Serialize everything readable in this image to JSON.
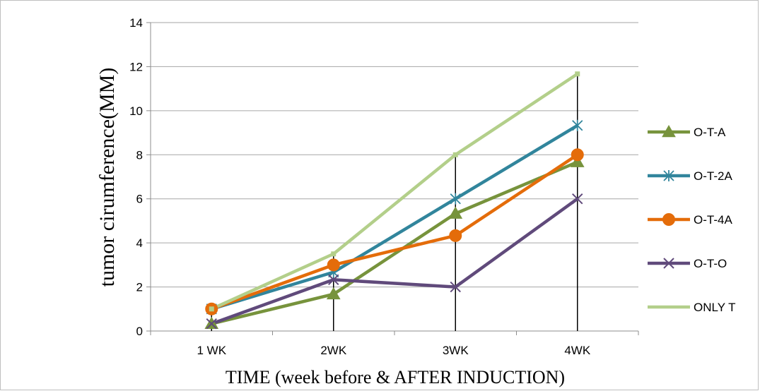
{
  "chart_data": {
    "type": "line",
    "title": "",
    "xlabel": "TIME (week before & AFTER INDUCTION)",
    "ylabel": "tumor cirumference(MM)",
    "categories": [
      "1 WK",
      "2WK",
      "3WK",
      "4WK"
    ],
    "ylim": [
      0,
      14
    ],
    "yticks": [
      0,
      2,
      4,
      6,
      8,
      10,
      12,
      14
    ],
    "grid": "horizontal",
    "legend_position": "right",
    "series": [
      {
        "name": "O-T-A",
        "values": [
          0.33,
          1.67,
          5.33,
          7.67
        ],
        "color": "#77933c",
        "marker": "triangle"
      },
      {
        "name": "O-T-2A",
        "values": [
          1.0,
          2.67,
          6.0,
          9.33
        ],
        "color": "#31859c",
        "marker": "asterisk"
      },
      {
        "name": "O-T-4A",
        "values": [
          1.0,
          3.0,
          4.33,
          8.0
        ],
        "color": "#e46c0a",
        "marker": "circle"
      },
      {
        "name": "O-T-O",
        "values": [
          0.33,
          2.33,
          2.0,
          6.0
        ],
        "color": "#604a7b",
        "marker": "x"
      },
      {
        "name": "ONLY T",
        "values": [
          1.0,
          3.5,
          8.0,
          11.67
        ],
        "color": "#b3cf8a",
        "marker": "none"
      }
    ],
    "error_bar_tops": [
      1.0,
      3.6,
      8.0,
      11.67
    ]
  }
}
